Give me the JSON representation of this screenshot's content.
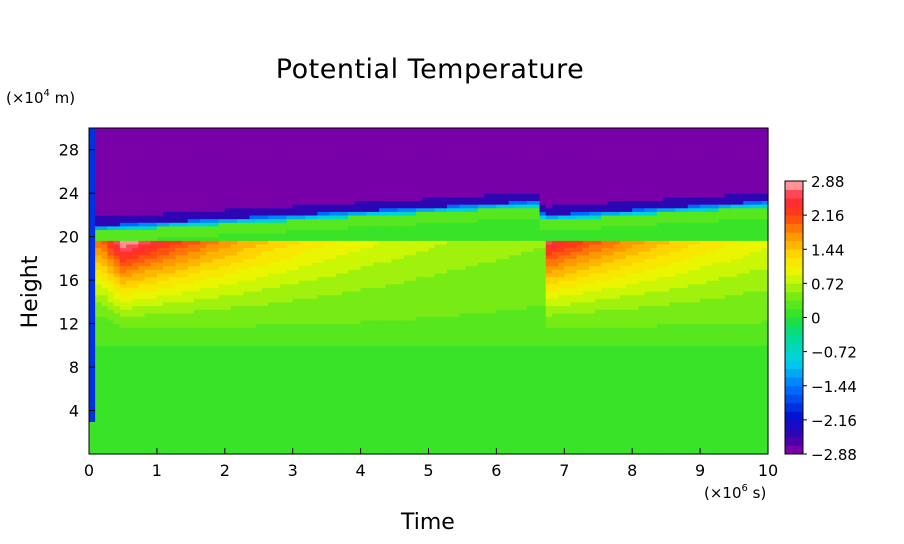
{
  "chart_data": {
    "type": "heatmap",
    "title": "Potential Temperature",
    "xlabel": "Time",
    "ylabel": "Height",
    "x_unit_prefix": "(×10",
    "x_unit_exp": "6",
    "x_unit_suffix": " s)",
    "y_unit_prefix": "(×10",
    "y_unit_exp": "4",
    "y_unit_suffix": " m)",
    "xlim": [
      0,
      10
    ],
    "ylim": [
      0,
      30
    ],
    "x_ticks": [
      "0",
      "1",
      "2",
      "3",
      "4",
      "5",
      "6",
      "7",
      "8",
      "9",
      "10"
    ],
    "y_ticks": [
      "4",
      "8",
      "12",
      "16",
      "20",
      "24",
      "28"
    ],
    "colorbar": {
      "range": [
        -2.88,
        2.88
      ],
      "levels": 32,
      "tick_labels": [
        "2.88",
        "2.16",
        "1.44",
        "0.72",
        "0",
        "−0.72",
        "−1.44",
        "−2.16",
        "−2.88"
      ],
      "tick_values": [
        2.88,
        2.16,
        1.44,
        0.72,
        0,
        -0.72,
        -1.44,
        -2.16,
        -2.88
      ]
    },
    "field_description": {
      "tropopause_height_start": 20.5,
      "tropopause_height_at_6_6": 22.8,
      "tropopause_height_reset": 21.5,
      "tropopause_height_end": 22.8,
      "restart_time": 6.7,
      "warm_anomaly_max": 2.88,
      "cold_anomaly_min": -2.88
    }
  },
  "colors": {
    "bg": "#ffffff",
    "frame": "#000000",
    "purple": "#8e00a8",
    "green": "#2de02d",
    "yellow": "#ffff00",
    "red": "#ff2a2a",
    "pink": "#ffb3b3"
  }
}
